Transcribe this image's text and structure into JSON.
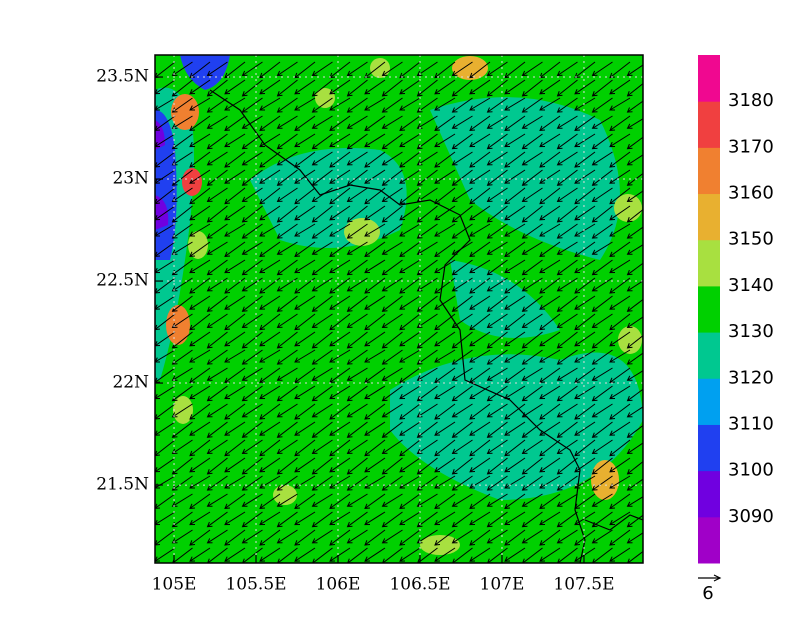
{
  "map": {
    "xlim": [
      104.884,
      107.86
    ],
    "ylim": [
      21.118,
      23.608
    ],
    "xticks": [
      {
        "value": 105,
        "label": "105E"
      },
      {
        "value": 105.5,
        "label": "105.5E"
      },
      {
        "value": 106,
        "label": "106E"
      },
      {
        "value": 106.5,
        "label": "106.5E"
      },
      {
        "value": 107,
        "label": "107E"
      },
      {
        "value": 107.5,
        "label": "107.5E"
      }
    ],
    "yticks": [
      {
        "value": 21.5,
        "label": "21.5N"
      },
      {
        "value": 22,
        "label": "22N"
      },
      {
        "value": 22.5,
        "label": "22.5N"
      },
      {
        "value": 23,
        "label": "23N"
      },
      {
        "value": 23.5,
        "label": "23.5N"
      }
    ],
    "colorbar": {
      "levels": [
        3090,
        3100,
        3110,
        3120,
        3130,
        3140,
        3150,
        3160,
        3170,
        3180
      ],
      "colors": [
        "#a000c8",
        "#7000e0",
        "#2040f0",
        "#00a0f0",
        "#00c890",
        "#00d000",
        "#a8e040",
        "#e8b030",
        "#f08030",
        "#f04040",
        "#f00890"
      ]
    },
    "vector_reference": "6"
  }
}
